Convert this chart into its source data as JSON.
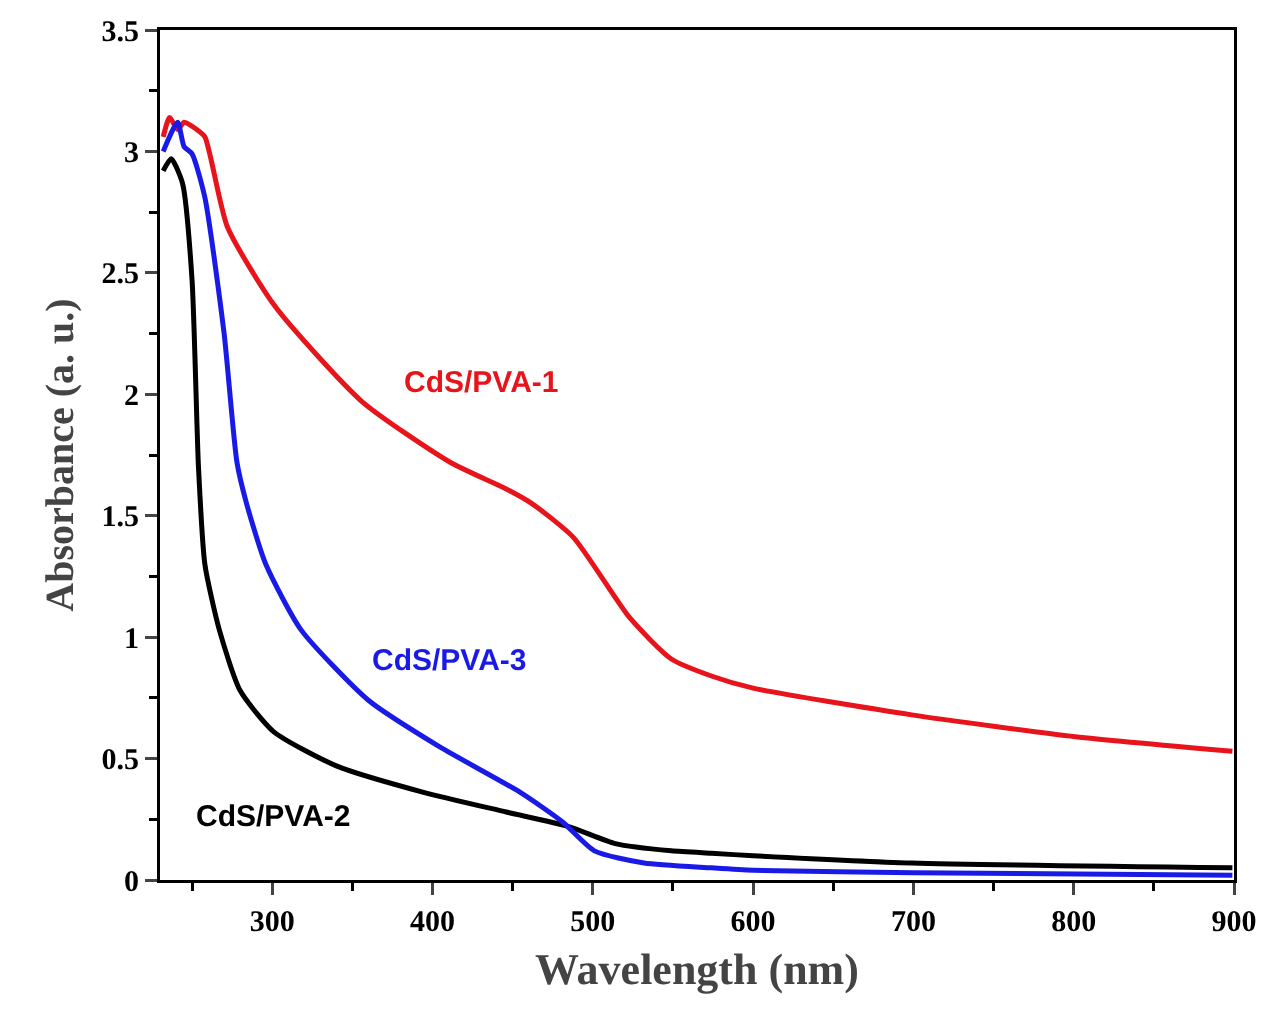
{
  "chart_data": {
    "type": "line",
    "xlabel": "Wavelength (nm)",
    "ylabel": "Absorbance (a. u.)",
    "xlim": [
      230,
      900
    ],
    "ylim": [
      0,
      3.5
    ],
    "xticks": [
      300,
      400,
      500,
      600,
      700,
      800,
      900
    ],
    "yticks": [
      0,
      0.5,
      1,
      1.5,
      2,
      2.5,
      3,
      3.5
    ],
    "grid": false,
    "legend": false,
    "marker": "none",
    "line_style": "solid",
    "series": [
      {
        "name": "CdS/PVA-1",
        "color": "#e8141c",
        "x": [
          232,
          236,
          241,
          245,
          253,
          258,
          272,
          302,
          356,
          411,
          446,
          462,
          488,
          523,
          549,
          574,
          600,
          699,
          801,
          899
        ],
        "values": [
          3.06,
          3.14,
          3.09,
          3.12,
          3.09,
          3.06,
          2.69,
          2.36,
          1.97,
          1.72,
          1.61,
          1.55,
          1.41,
          1.08,
          0.91,
          0.84,
          0.79,
          0.68,
          0.59,
          0.53
        ]
      },
      {
        "name": "CdS/PVA-2",
        "color": "#000000",
        "x": [
          232,
          237,
          244,
          250,
          254,
          258,
          267,
          280,
          301,
          340,
          395,
          446,
          485,
          514,
          549,
          574,
          600,
          699,
          899
        ],
        "values": [
          2.92,
          2.97,
          2.87,
          2.47,
          1.7,
          1.3,
          1.03,
          0.78,
          0.61,
          0.47,
          0.36,
          0.28,
          0.22,
          0.15,
          0.12,
          0.11,
          0.1,
          0.07,
          0.05
        ]
      },
      {
        "name": "CdS/PVA-3",
        "color": "#1a1ae6",
        "x": [
          232,
          241,
          245,
          250,
          258,
          270,
          278,
          284,
          296,
          318,
          360,
          404,
          455,
          481,
          501,
          532,
          574,
          600,
          700,
          899
        ],
        "values": [
          3.0,
          3.12,
          3.02,
          2.99,
          2.81,
          2.25,
          1.72,
          1.55,
          1.3,
          1.03,
          0.74,
          0.55,
          0.36,
          0.24,
          0.12,
          0.07,
          0.05,
          0.04,
          0.03,
          0.02
        ]
      }
    ]
  }
}
